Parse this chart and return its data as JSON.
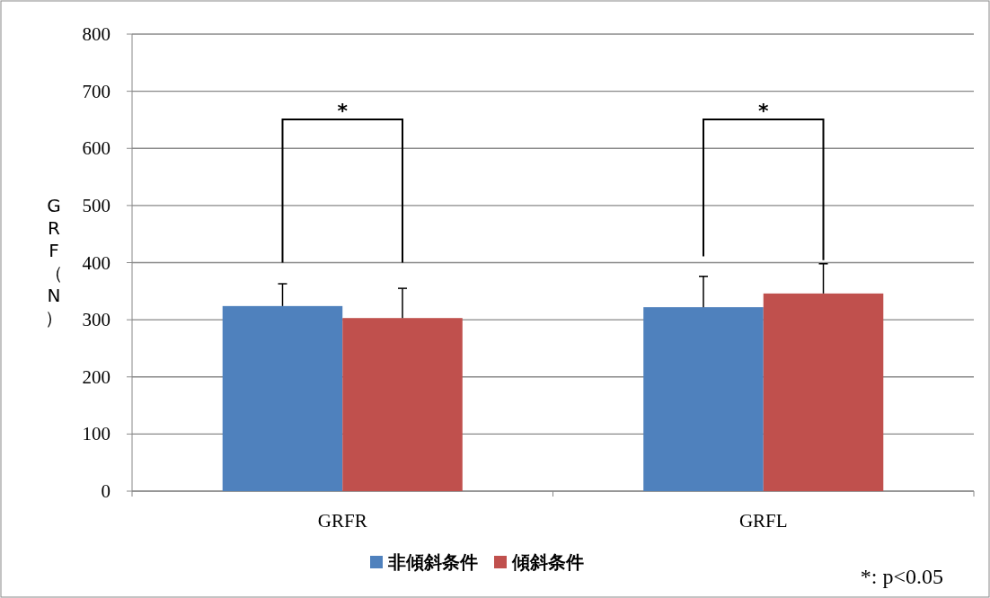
{
  "chart_data": {
    "type": "bar",
    "ylabel": "GRF（N）",
    "categories": [
      "GRFR",
      "GRFL"
    ],
    "series": [
      {
        "name": "非傾斜条件",
        "color": "#4f81bd",
        "values": [
          324,
          322
        ],
        "errors": [
          [
            324,
            363
          ],
          [
            322,
            376
          ]
        ]
      },
      {
        "name": "傾斜条件",
        "color": "#c0504d",
        "values": [
          303,
          346
        ],
        "errors": [
          [
            303,
            355
          ],
          [
            346,
            398
          ]
        ]
      }
    ],
    "ylim": [
      0,
      800
    ],
    "yticks": [
      0,
      100,
      200,
      300,
      400,
      500,
      600,
      700,
      800
    ],
    "grid": "y",
    "legend": "bottom",
    "annotations": [
      "*",
      "*",
      "*: p<0.05"
    ]
  }
}
